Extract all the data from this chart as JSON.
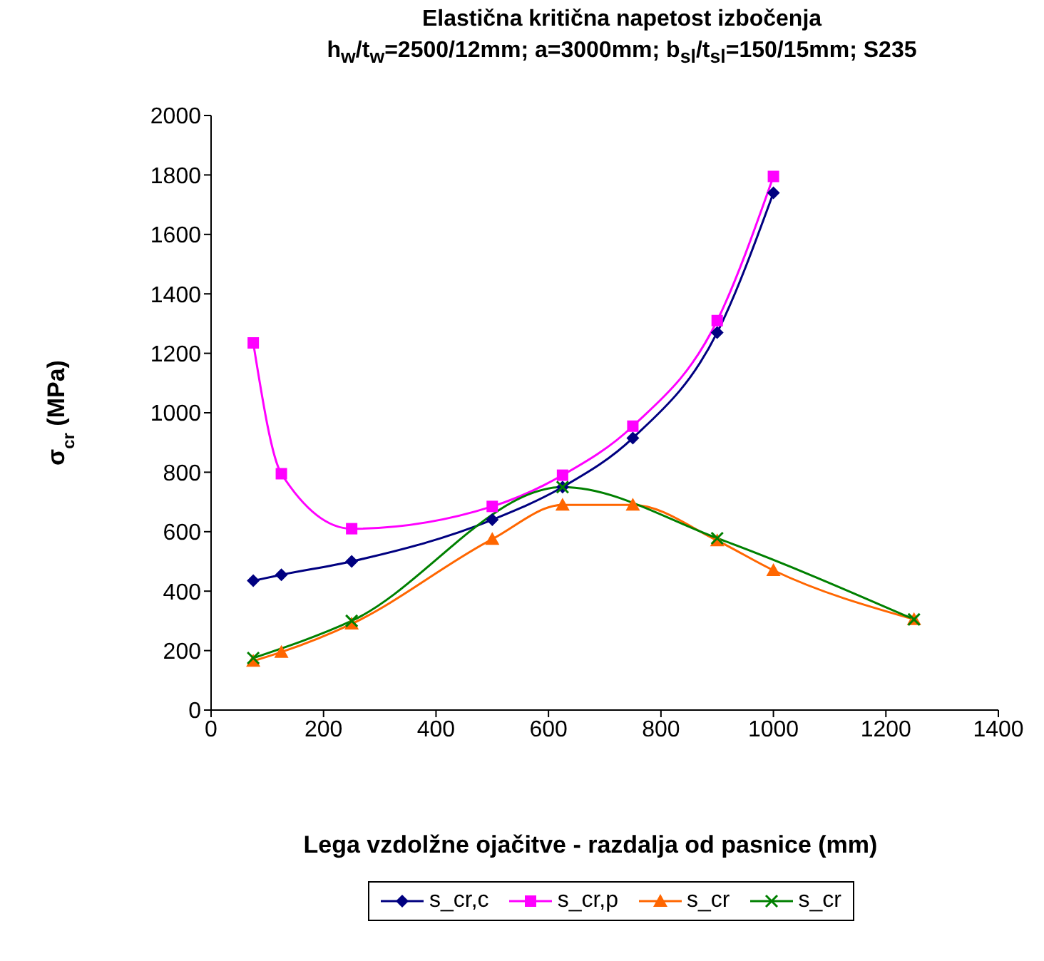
{
  "chart_data": {
    "type": "line",
    "title": "Elastična kritična napetost izbočenja",
    "subtitle": "h$_{w}$/t$_{w}$=2500/12mm; a=3000mm; b$_{sl}$/t$_{sl}$=150/15mm; S235",
    "xlabel": "Lega vzdolžne ojačitve - razdalja od pasnice (mm)",
    "ylabel": "σ$_{cr}$ (MPa)",
    "xlim": [
      0,
      1400
    ],
    "xticks": [
      0,
      200,
      400,
      600,
      800,
      1000,
      1200,
      1400
    ],
    "ylim": [
      0,
      2000
    ],
    "yticks": [
      0,
      200,
      400,
      600,
      800,
      1000,
      1200,
      1400,
      1600,
      1800,
      2000
    ],
    "legend": "bottom",
    "series": [
      {
        "name": "s_cr,c",
        "color": "#000080",
        "marker": "diamond",
        "x": [
          75,
          125,
          250,
          500,
          625,
          750,
          900,
          1000
        ],
        "values": [
          435,
          455,
          500,
          640,
          750,
          915,
          1270,
          1740
        ]
      },
      {
        "name": "s_cr,p",
        "color": "#ff00ff",
        "marker": "square",
        "x": [
          75,
          125,
          250,
          500,
          625,
          750,
          900,
          1000
        ],
        "values": [
          1235,
          795,
          610,
          685,
          790,
          955,
          1310,
          1795
        ]
      },
      {
        "name": "s_cr",
        "color": "#ff6600",
        "marker": "triangle",
        "x": [
          75,
          125,
          250,
          500,
          625,
          750,
          900,
          1000,
          1250
        ],
        "values": [
          165,
          195,
          290,
          575,
          690,
          690,
          570,
          470,
          305
        ]
      },
      {
        "name": "s_cr",
        "color": "#008000",
        "marker": "cross",
        "x": [
          75,
          250,
          625,
          900,
          1250
        ],
        "values": [
          175,
          300,
          750,
          578,
          305
        ]
      }
    ]
  }
}
